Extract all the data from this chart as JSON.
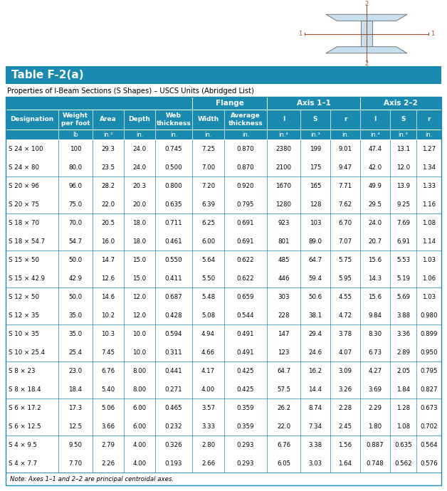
{
  "title": "Table F-2(a)",
  "subtitle": "Properties of I-Beam Sections (S Shapes) – USCS Units (Abridged List)",
  "note": "Note: Axes 1–1 and 2–2 are principal centroidal axes.",
  "header_bg": "#1b8ab0",
  "header_text_color": "#ffffff",
  "table_border_color": "#1b8ab0",
  "rows": [
    [
      "S 24 × 100",
      "100",
      "29.3",
      "24.0",
      "0.745",
      "7.25",
      "0.870",
      "2380",
      "199",
      "9.01",
      "47.4",
      "13.1",
      "1.27"
    ],
    [
      "S 24 × 80",
      "80.0",
      "23.5",
      "24.0",
      "0.500",
      "7.00",
      "0.870",
      "2100",
      "175",
      "9.47",
      "42.0",
      "12.0",
      "1.34"
    ],
    [
      "S 20 × 96",
      "96.0",
      "28.2",
      "20.3",
      "0.800",
      "7.20",
      "0.920",
      "1670",
      "165",
      "7.71",
      "49.9",
      "13.9",
      "1.33"
    ],
    [
      "S 20 × 75",
      "75.0",
      "22.0",
      "20.0",
      "0.635",
      "6.39",
      "0.795",
      "1280",
      "128",
      "7.62",
      "29.5",
      "9.25",
      "1.16"
    ],
    [
      "S 18 × 70",
      "70.0",
      "20.5",
      "18.0",
      "0.711",
      "6.25",
      "0.691",
      "923",
      "103",
      "6.70",
      "24.0",
      "7.69",
      "1.08"
    ],
    [
      "S 18 × 54.7",
      "54.7",
      "16.0",
      "18.0",
      "0.461",
      "6.00",
      "0.691",
      "801",
      "89.0",
      "7.07",
      "20.7",
      "6.91",
      "1.14"
    ],
    [
      "S 15 × 50",
      "50.0",
      "14.7",
      "15.0",
      "0.550",
      "5.64",
      "0.622",
      "485",
      "64.7",
      "5.75",
      "15.6",
      "5.53",
      "1.03"
    ],
    [
      "S 15 × 42.9",
      "42.9",
      "12.6",
      "15.0",
      "0.411",
      "5.50",
      "0.622",
      "446",
      "59.4",
      "5.95",
      "14.3",
      "5.19",
      "1.06"
    ],
    [
      "S 12 × 50",
      "50.0",
      "14.6",
      "12.0",
      "0.687",
      "5.48",
      "0.659",
      "303",
      "50.6",
      "4.55",
      "15.6",
      "5.69",
      "1.03"
    ],
    [
      "S 12 × 35",
      "35.0",
      "10.2",
      "12.0",
      "0.428",
      "5.08",
      "0.544",
      "228",
      "38.1",
      "4.72",
      "9.84",
      "3.88",
      "0.980"
    ],
    [
      "S 10 × 35",
      "35.0",
      "10.3",
      "10.0",
      "0.594",
      "4.94",
      "0.491",
      "147",
      "29.4",
      "3.78",
      "8.30",
      "3.36",
      "0.899"
    ],
    [
      "S 10 × 25.4",
      "25.4",
      "7.45",
      "10.0",
      "0.311",
      "4.66",
      "0.491",
      "123",
      "24.6",
      "4.07",
      "6.73",
      "2.89",
      "0.950"
    ],
    [
      "S 8 × 23",
      "23.0",
      "6.76",
      "8.00",
      "0.441",
      "4.17",
      "0.425",
      "64.7",
      "16.2",
      "3.09",
      "4.27",
      "2.05",
      "0.795"
    ],
    [
      "S 8 × 18.4",
      "18.4",
      "5.40",
      "8.00",
      "0.271",
      "4.00",
      "0.425",
      "57.5",
      "14.4",
      "3.26",
      "3.69",
      "1.84",
      "0.827"
    ],
    [
      "S 6 × 17.2",
      "17.3",
      "5.06",
      "6.00",
      "0.465",
      "3.57",
      "0.359",
      "26.2",
      "8.74",
      "2.28",
      "2.29",
      "1.28",
      "0.673"
    ],
    [
      "S 6 × 12.5",
      "12.5",
      "3.66",
      "6.00",
      "0.232",
      "3.33",
      "0.359",
      "22.0",
      "7.34",
      "2.45",
      "1.80",
      "1.08",
      "0.702"
    ],
    [
      "S 4 × 9.5",
      "9.50",
      "2.79",
      "4.00",
      "0.326",
      "2.80",
      "0.293",
      "6.76",
      "3.38",
      "1.56",
      "0.887",
      "0.635",
      "0.564"
    ],
    [
      "S 4 × 7.7",
      "7.70",
      "2.26",
      "4.00",
      "0.193",
      "2.66",
      "0.293",
      "6.05",
      "3.03",
      "1.64",
      "0.748",
      "0.562",
      "0.576"
    ]
  ]
}
